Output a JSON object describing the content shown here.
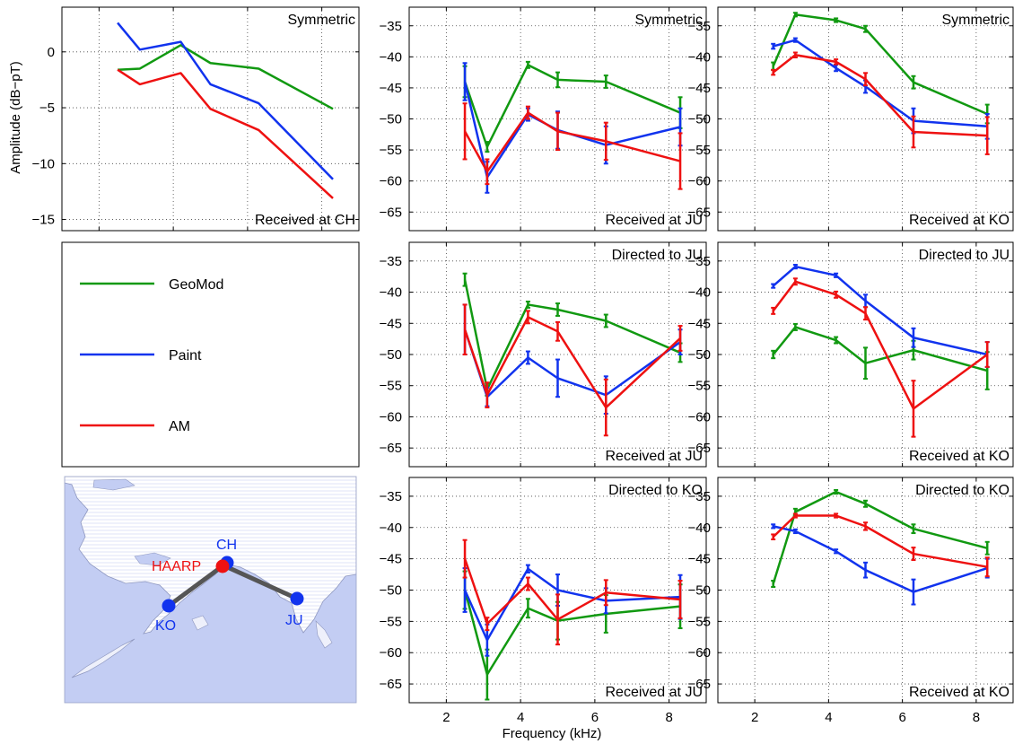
{
  "figure": {
    "ylabel": "Amplitude (dB−pT)",
    "xlabel": "Frequency (kHz)",
    "colors": {
      "GeoMod": "#119911",
      "Paint": "#1133ee",
      "AM": "#ee1111"
    }
  },
  "legend": {
    "entries": [
      {
        "name": "GeoMod",
        "color": "#119911"
      },
      {
        "name": "Paint",
        "color": "#1133ee"
      },
      {
        "name": "AM",
        "color": "#ee1111"
      }
    ]
  },
  "map": {
    "sites": [
      {
        "label": "CH",
        "color": "#1133ee"
      },
      {
        "label": "HAARP",
        "color": "#ee1111"
      },
      {
        "label": "KO",
        "color": "#1133ee"
      },
      {
        "label": "JU",
        "color": "#1133ee"
      }
    ]
  },
  "chart_data": [
    {
      "id": "ch-symmetric",
      "type": "line",
      "title": "Symmetric",
      "subtitle": "Received at CH",
      "xlim": [
        1.0,
        9.0
      ],
      "ylim": [
        -16,
        4
      ],
      "xticks": [
        2,
        4,
        6,
        8
      ],
      "show_xtick_labels": false,
      "yticks": [
        0,
        -5,
        -10,
        -15
      ],
      "grid": true,
      "series": [
        {
          "name": "GeoMod",
          "color": "#119911",
          "x": [
            2.5,
            3.1,
            4.2,
            5.0,
            6.3,
            8.3
          ],
          "y": [
            -1.6,
            -1.5,
            0.6,
            -1.0,
            -1.5,
            -5.1
          ]
        },
        {
          "name": "Paint",
          "color": "#1133ee",
          "x": [
            2.5,
            3.1,
            4.2,
            5.0,
            6.3,
            8.3
          ],
          "y": [
            2.6,
            0.2,
            0.9,
            -2.9,
            -4.6,
            -11.4
          ]
        },
        {
          "name": "AM",
          "color": "#ee1111",
          "x": [
            2.5,
            3.1,
            4.2,
            5.0,
            6.3,
            8.3
          ],
          "y": [
            -1.6,
            -2.9,
            -1.9,
            -5.1,
            -7.0,
            -13.1
          ]
        }
      ]
    },
    {
      "id": "ju-symmetric",
      "type": "line",
      "title": "Symmetric",
      "subtitle": "Received at JU",
      "xlim": [
        1.0,
        9.0
      ],
      "ylim": [
        -68,
        -32
      ],
      "xticks": [
        2,
        4,
        6,
        8
      ],
      "show_xtick_labels": false,
      "yticks": [
        -35,
        -40,
        -45,
        -50,
        -55,
        -60,
        -65
      ],
      "grid": true,
      "series": [
        {
          "name": "GeoMod",
          "color": "#119911",
          "x": [
            2.5,
            3.1,
            4.2,
            5.0,
            6.3,
            8.3
          ],
          "y": [
            -44.0,
            -54.5,
            -41.3,
            -43.7,
            -44.0,
            -49.0
          ],
          "err": [
            2.5,
            0.8,
            0.5,
            1.2,
            1.0,
            2.5
          ]
        },
        {
          "name": "Paint",
          "color": "#1133ee",
          "x": [
            2.5,
            3.1,
            4.2,
            5.0,
            6.3,
            8.3
          ],
          "y": [
            -44.0,
            -59.4,
            -49.3,
            -51.8,
            -54.2,
            -51.3
          ],
          "err": [
            3.0,
            2.5,
            1.0,
            3.0,
            3.0,
            3.0
          ]
        },
        {
          "name": "AM",
          "color": "#ee1111",
          "x": [
            2.5,
            3.1,
            4.2,
            5.0,
            6.3,
            8.3
          ],
          "y": [
            -52.0,
            -58.5,
            -49.0,
            -52.0,
            -53.6,
            -56.8
          ],
          "err": [
            4.5,
            2.0,
            1.0,
            3.0,
            3.0,
            4.5
          ]
        }
      ]
    },
    {
      "id": "ko-symmetric",
      "type": "line",
      "title": "Symmetric",
      "subtitle": "Received at KO",
      "xlim": [
        1.0,
        9.0
      ],
      "ylim": [
        -68,
        -32
      ],
      "xticks": [
        2,
        4,
        6,
        8
      ],
      "show_xtick_labels": false,
      "yticks": [
        -35,
        -40,
        -45,
        -50,
        -55,
        -60,
        -65
      ],
      "grid": true,
      "series": [
        {
          "name": "GeoMod",
          "color": "#119911",
          "x": [
            2.5,
            3.1,
            4.2,
            5.0,
            6.3,
            8.3
          ],
          "y": [
            -41.5,
            -33.2,
            -34.1,
            -35.5,
            -44.1,
            -49.2
          ],
          "err": [
            0.6,
            0.3,
            0.3,
            0.5,
            1.0,
            1.5
          ]
        },
        {
          "name": "Paint",
          "color": "#1133ee",
          "x": [
            2.5,
            3.1,
            4.2,
            5.0,
            6.3,
            8.3
          ],
          "y": [
            -38.3,
            -37.3,
            -41.8,
            -44.8,
            -50.3,
            -51.2
          ],
          "err": [
            0.4,
            0.3,
            0.5,
            1.0,
            2.0,
            2.0
          ]
        },
        {
          "name": "AM",
          "color": "#ee1111",
          "x": [
            2.5,
            3.1,
            4.2,
            5.0,
            6.3,
            8.3
          ],
          "y": [
            -42.5,
            -39.7,
            -40.8,
            -43.6,
            -52.1,
            -52.7
          ],
          "err": [
            0.4,
            0.4,
            0.4,
            1.0,
            2.5,
            3.0
          ]
        }
      ]
    },
    {
      "id": "ju-directed-ju",
      "type": "line",
      "title": "Directed to JU",
      "subtitle": "Received at JU",
      "xlim": [
        1.0,
        9.0
      ],
      "ylim": [
        -68,
        -32
      ],
      "xticks": [
        2,
        4,
        6,
        8
      ],
      "show_xtick_labels": false,
      "yticks": [
        -35,
        -40,
        -45,
        -50,
        -55,
        -60,
        -65
      ],
      "grid": true,
      "series": [
        {
          "name": "GeoMod",
          "color": "#119911",
          "x": [
            2.5,
            3.1,
            4.2,
            5.0,
            6.3,
            8.3
          ],
          "y": [
            -38.0,
            -55.6,
            -42.0,
            -42.8,
            -44.6,
            -49.7
          ],
          "err": [
            1.0,
            1.0,
            0.5,
            1.0,
            1.0,
            1.5
          ]
        },
        {
          "name": "Paint",
          "color": "#1133ee",
          "x": [
            2.5,
            3.1,
            4.2,
            5.0,
            6.3,
            8.3
          ],
          "y": [
            -46.0,
            -56.8,
            -50.5,
            -53.8,
            -56.5,
            -48.0
          ],
          "err": [
            4.0,
            1.5,
            1.0,
            3.0,
            3.0,
            2.0
          ]
        },
        {
          "name": "AM",
          "color": "#ee1111",
          "x": [
            2.5,
            3.1,
            4.2,
            5.0,
            6.3,
            8.3
          ],
          "y": [
            -46.0,
            -56.5,
            -44.0,
            -46.3,
            -58.5,
            -47.4
          ],
          "err": [
            4.0,
            2.0,
            1.0,
            1.5,
            4.5,
            2.0
          ]
        }
      ]
    },
    {
      "id": "ko-directed-ju",
      "type": "line",
      "title": "Directed to JU",
      "subtitle": "Received at KO",
      "xlim": [
        1.0,
        9.0
      ],
      "ylim": [
        -68,
        -32
      ],
      "xticks": [
        2,
        4,
        6,
        8
      ],
      "show_xtick_labels": false,
      "yticks": [
        -35,
        -40,
        -45,
        -50,
        -55,
        -60,
        -65
      ],
      "grid": true,
      "series": [
        {
          "name": "GeoMod",
          "color": "#119911",
          "x": [
            2.5,
            3.1,
            4.2,
            5.0,
            6.3,
            8.3
          ],
          "y": [
            -50.0,
            -45.6,
            -47.7,
            -51.4,
            -49.3,
            -52.6
          ],
          "err": [
            0.6,
            0.5,
            0.5,
            2.5,
            1.5,
            3.0
          ]
        },
        {
          "name": "Paint",
          "color": "#1133ee",
          "x": [
            2.5,
            3.1,
            4.2,
            5.0,
            6.3,
            8.3
          ],
          "y": [
            -39.0,
            -35.9,
            -37.3,
            -41.4,
            -47.3,
            -50.0
          ],
          "err": [
            0.3,
            0.3,
            0.3,
            1.0,
            1.5,
            2.0
          ]
        },
        {
          "name": "AM",
          "color": "#ee1111",
          "x": [
            2.5,
            3.1,
            4.2,
            5.0,
            6.3,
            8.3
          ],
          "y": [
            -43.0,
            -38.3,
            -40.4,
            -43.4,
            -58.7,
            -50.0
          ],
          "err": [
            0.5,
            0.5,
            0.5,
            1.0,
            4.5,
            2.0
          ]
        }
      ]
    },
    {
      "id": "ju-directed-ko",
      "type": "line",
      "title": "Directed to KO",
      "subtitle": "Received at JU",
      "xlim": [
        1.0,
        9.0
      ],
      "ylim": [
        -68,
        -32
      ],
      "xticks": [
        2,
        4,
        6,
        8
      ],
      "show_xtick_labels": true,
      "yticks": [
        -35,
        -40,
        -45,
        -50,
        -55,
        -60,
        -65
      ],
      "grid": true,
      "series": [
        {
          "name": "GeoMod",
          "color": "#119911",
          "x": [
            2.5,
            3.1,
            4.2,
            5.0,
            6.3,
            8.3
          ],
          "y": [
            -50.0,
            -63.5,
            -52.9,
            -54.9,
            -53.8,
            -52.6
          ],
          "err": [
            3.0,
            4.0,
            1.5,
            3.0,
            3.0,
            3.5
          ]
        },
        {
          "name": "Paint",
          "color": "#1133ee",
          "x": [
            2.5,
            3.1,
            4.2,
            5.0,
            6.3,
            8.3
          ],
          "y": [
            -50.0,
            -58.0,
            -46.6,
            -50.0,
            -51.7,
            -51.1
          ],
          "err": [
            3.5,
            2.5,
            0.6,
            2.5,
            2.0,
            3.5
          ]
        },
        {
          "name": "AM",
          "color": "#ee1111",
          "x": [
            2.5,
            3.1,
            4.2,
            5.0,
            6.3,
            8.3
          ],
          "y": [
            -45.0,
            -55.4,
            -49.0,
            -54.7,
            -50.4,
            -51.5
          ],
          "err": [
            3.0,
            1.0,
            1.0,
            4.0,
            2.0,
            3.0
          ]
        }
      ]
    },
    {
      "id": "ko-directed-ko",
      "type": "line",
      "title": "Directed to KO",
      "subtitle": "Received at KO",
      "xlim": [
        1.0,
        9.0
      ],
      "ylim": [
        -68,
        -32
      ],
      "xticks": [
        2,
        4,
        6,
        8
      ],
      "show_xtick_labels": true,
      "yticks": [
        -35,
        -40,
        -45,
        -50,
        -55,
        -60,
        -65
      ],
      "grid": true,
      "series": [
        {
          "name": "GeoMod",
          "color": "#119911",
          "x": [
            2.5,
            3.1,
            4.2,
            5.0,
            6.3,
            8.3
          ],
          "y": [
            -49.0,
            -37.5,
            -34.3,
            -36.2,
            -40.2,
            -43.3
          ],
          "err": [
            0.5,
            0.5,
            0.3,
            0.5,
            0.7,
            1.0
          ]
        },
        {
          "name": "Paint",
          "color": "#1133ee",
          "x": [
            2.5,
            3.1,
            4.2,
            5.0,
            6.3,
            8.3
          ],
          "y": [
            -39.8,
            -40.6,
            -43.8,
            -46.8,
            -50.3,
            -46.5
          ],
          "err": [
            0.3,
            0.3,
            0.3,
            1.2,
            2.0,
            1.5
          ]
        },
        {
          "name": "AM",
          "color": "#ee1111",
          "x": [
            2.5,
            3.1,
            4.2,
            5.0,
            6.3,
            8.3
          ],
          "y": [
            -41.5,
            -38.1,
            -38.1,
            -39.8,
            -44.2,
            -46.3
          ],
          "err": [
            0.4,
            0.3,
            0.3,
            0.6,
            1.0,
            1.5
          ]
        }
      ]
    }
  ]
}
